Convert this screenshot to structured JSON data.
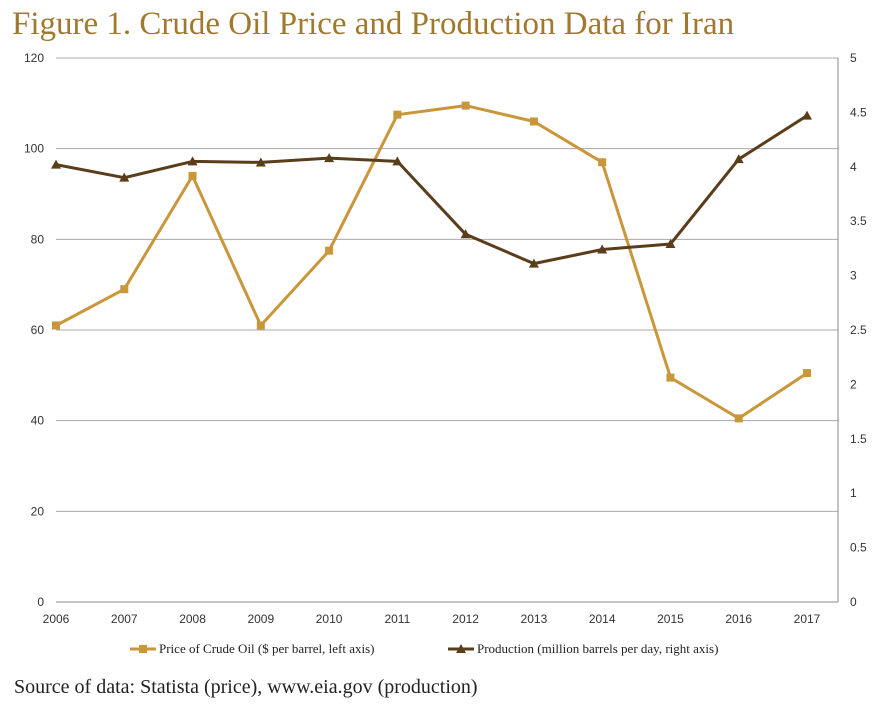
{
  "title": "Figure 1. Crude Oil Price and Production Data for Iran",
  "source": "Source of data: Statista (price), www.eia.gov (production)",
  "chart_data": {
    "type": "line",
    "categories": [
      "2006",
      "2007",
      "2008",
      "2009",
      "2010",
      "2011",
      "2012",
      "2013",
      "2014",
      "2015",
      "2016",
      "2017"
    ],
    "series": [
      {
        "name": "Price of Crude Oil ($ per barrel, left axis)",
        "axis": "left",
        "marker": "square",
        "color": "#c9963a",
        "values": [
          61,
          69,
          94,
          61,
          77.5,
          107.5,
          109.5,
          106,
          97,
          49.5,
          40.5,
          50.5
        ]
      },
      {
        "name": "Production (million barrels per day, right axis)",
        "axis": "right",
        "marker": "triangle",
        "color": "#5a3e1b",
        "values": [
          4.02,
          3.9,
          4.05,
          4.04,
          4.08,
          4.05,
          3.38,
          3.11,
          3.24,
          3.29,
          4.07,
          4.47
        ]
      }
    ],
    "left_axis": {
      "ylim": [
        0,
        120
      ],
      "ticks": [
        "0",
        "20",
        "40",
        "60",
        "80",
        "100",
        "120"
      ]
    },
    "right_axis": {
      "ylim": [
        0,
        5
      ],
      "ticks": [
        "0",
        "0.5",
        "1",
        "1.5",
        "2",
        "2.5",
        "3",
        "3.5",
        "4",
        "4.5",
        "5"
      ]
    },
    "grid": true,
    "legend_position": "bottom"
  }
}
